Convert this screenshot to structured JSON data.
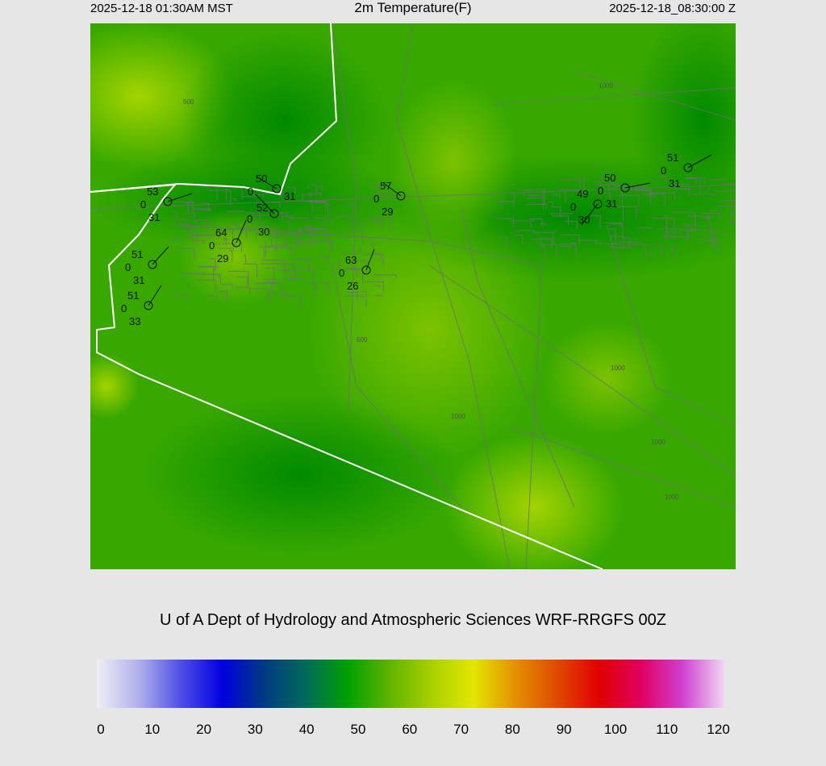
{
  "header": {
    "local_time": "2025-12-18 01:30AM MST",
    "title": "2m Temperature(F)",
    "utc_time": "2025-12-18_08:30:00 Z"
  },
  "credit": "U of A Dept of Hydrology and Atmospheric Sciences WRF-RRGFS 00Z",
  "colorbar": {
    "ticks": [
      "0",
      "10",
      "20",
      "30",
      "40",
      "50",
      "60",
      "70",
      "80",
      "90",
      "100",
      "110",
      "120"
    ],
    "colors": [
      "#f0eef6",
      "#b0b0ec",
      "#5050e6",
      "#0000e0",
      "#003a80",
      "#006a5a",
      "#00a000",
      "#60b400",
      "#a8d000",
      "#e4e600",
      "#e49000",
      "#e04a00",
      "#e00000",
      "#e00060",
      "#d040d0",
      "#f0d8f0"
    ]
  },
  "map": {
    "contour_labels": [
      "1000",
      "1000",
      "1000",
      "1000",
      "500",
      "500",
      "1000"
    ],
    "stations": [
      {
        "temp": "53",
        "wind": "0",
        "dew": "31"
      },
      {
        "temp": "50",
        "wind": "0",
        "dew": "31"
      },
      {
        "temp": "52",
        "wind": "0",
        "dew": "30"
      },
      {
        "temp": "64",
        "wind": "0",
        "dew": "29"
      },
      {
        "temp": "51",
        "wind": "0",
        "dew": "31"
      },
      {
        "temp": "51",
        "wind": "0",
        "dew": "33"
      },
      {
        "temp": "63",
        "wind": "0",
        "dew": "26"
      },
      {
        "temp": "57",
        "wind": "0",
        "dew": "29"
      },
      {
        "temp": "49",
        "wind": "0",
        "dew": "30"
      },
      {
        "temp": "50",
        "wind": "0",
        "dew": "31"
      },
      {
        "temp": "51",
        "wind": "0",
        "dew": "31"
      }
    ]
  }
}
